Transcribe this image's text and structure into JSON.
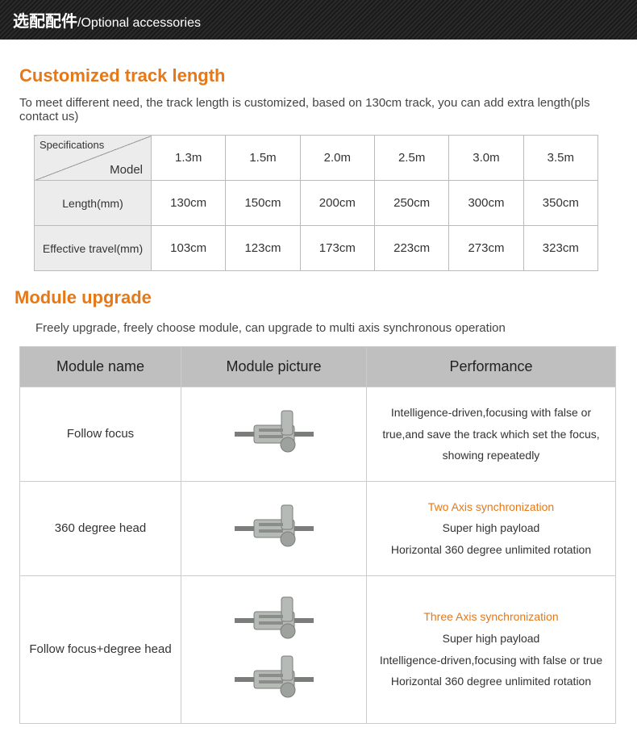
{
  "header": {
    "cn": "选配配件",
    "en": "/Optional accessories"
  },
  "section1": {
    "title": "Customized track length",
    "desc": "To meet different need, the track length is customized, based on 130cm track, you can add extra length(pls contact us)",
    "diag_top": "Specifications",
    "diag_bottom": "Model",
    "models": [
      "1.3m",
      "1.5m",
      "2.0m",
      "2.5m",
      "3.0m",
      "3.5m"
    ],
    "row_length_label": "Length(mm)",
    "row_length": [
      "130cm",
      "150cm",
      "200cm",
      "250cm",
      "300cm",
      "350cm"
    ],
    "row_travel_label": "Effective travel(mm)",
    "row_travel": [
      "103cm",
      "123cm",
      "173cm",
      "223cm",
      "273cm",
      "323cm"
    ]
  },
  "section2": {
    "title": "Module upgrade",
    "desc": "Freely upgrade, freely choose module, can upgrade to multi axis synchronous operation",
    "headers": [
      "Module name",
      "Module picture",
      "Performance"
    ],
    "rows": [
      {
        "name": "Follow focus",
        "gadgets": 1,
        "perf_header": "",
        "perf_lines": [
          "Intelligence-driven,focusing with false or",
          "true,and save the track which set the focus,",
          "showing repeatedly"
        ]
      },
      {
        "name": "360 degree head",
        "gadgets": 1,
        "perf_header": "Two Axis synchronization",
        "perf_lines": [
          "Super high payload",
          "Horizontal 360 degree unlimited rotation"
        ]
      },
      {
        "name": "Follow focus+degree head",
        "gadgets": 2,
        "perf_header": "Three Axis synchronization",
        "perf_lines": [
          "Super high payload",
          "Intelligence-driven,focusing with false or true",
          "Horizontal 360 degree unlimited rotation"
        ]
      }
    ]
  },
  "colors": {
    "accent": "#e67817",
    "header_bg": "#bfbfbf",
    "border": "#ccc"
  }
}
